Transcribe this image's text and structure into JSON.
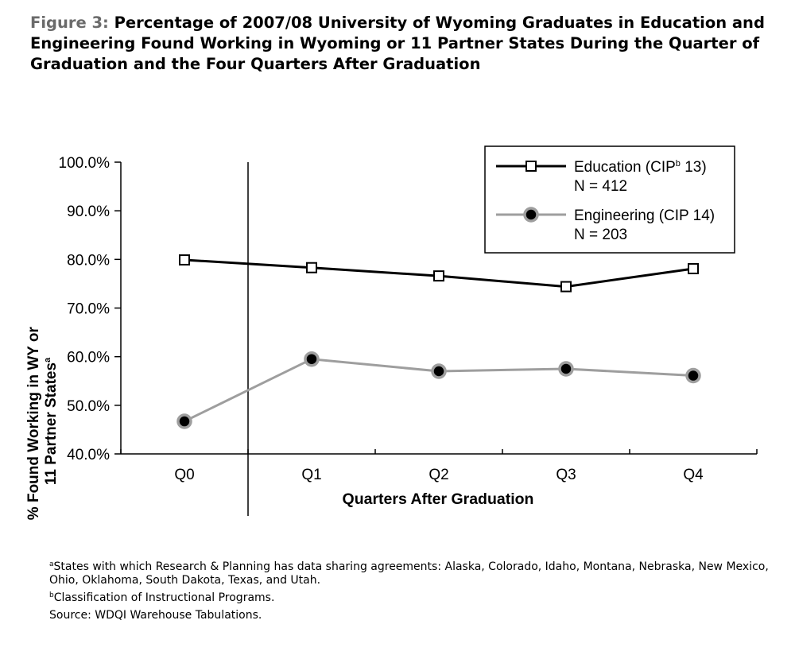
{
  "figure": {
    "label": "Figure 3: ",
    "title": "Percentage of 2007/08 University of Wyoming Graduates in Education and Engineering Found Working in Wyoming or 11 Partner States During the Quarter of Graduation and the Four Quarters After Graduation"
  },
  "chart_data": {
    "type": "line",
    "categories": [
      "Q0",
      "Q1",
      "Q2",
      "Q3",
      "Q4"
    ],
    "series": [
      {
        "name": "Education (CIP",
        "name_sup": "b",
        "name_after": " 13)",
        "n_label": "N = 412",
        "values": [
          79.9,
          78.3,
          76.6,
          74.4,
          78.1
        ],
        "color": "#000000",
        "marker": "square"
      },
      {
        "name": "Engineering (CIP 14)",
        "n_label": "N = 203",
        "values": [
          46.7,
          59.5,
          57.0,
          57.5,
          56.1
        ],
        "color": "#9e9e9e",
        "marker": "circle"
      }
    ],
    "xlabel": "Quarters After Graduation",
    "ylabel_line1": "% Found Working in WY or",
    "ylabel_line2": "11 Partner States",
    "ylabel_sup": "a",
    "ylim": [
      40,
      100
    ],
    "yticks": [
      40,
      50,
      60,
      70,
      80,
      90,
      100
    ],
    "ytick_labels": [
      "40.0%",
      "50.0%",
      "60.0%",
      "70.0%",
      "80.0%",
      "90.0%",
      "100.0%"
    ],
    "legend_position": "top-right",
    "grid": false
  },
  "notes": {
    "note_a_marker": "a",
    "note_a": "States with which Research & Planning has data sharing agreements: Alaska, Colorado, Idaho, Montana, Nebraska, New Mexico, Ohio, Oklahoma, South Dakota, Texas, and Utah.",
    "note_b_marker": "b",
    "note_b": "Classification of Instructional Programs.",
    "source": "Source: WDQI Warehouse Tabulations."
  }
}
